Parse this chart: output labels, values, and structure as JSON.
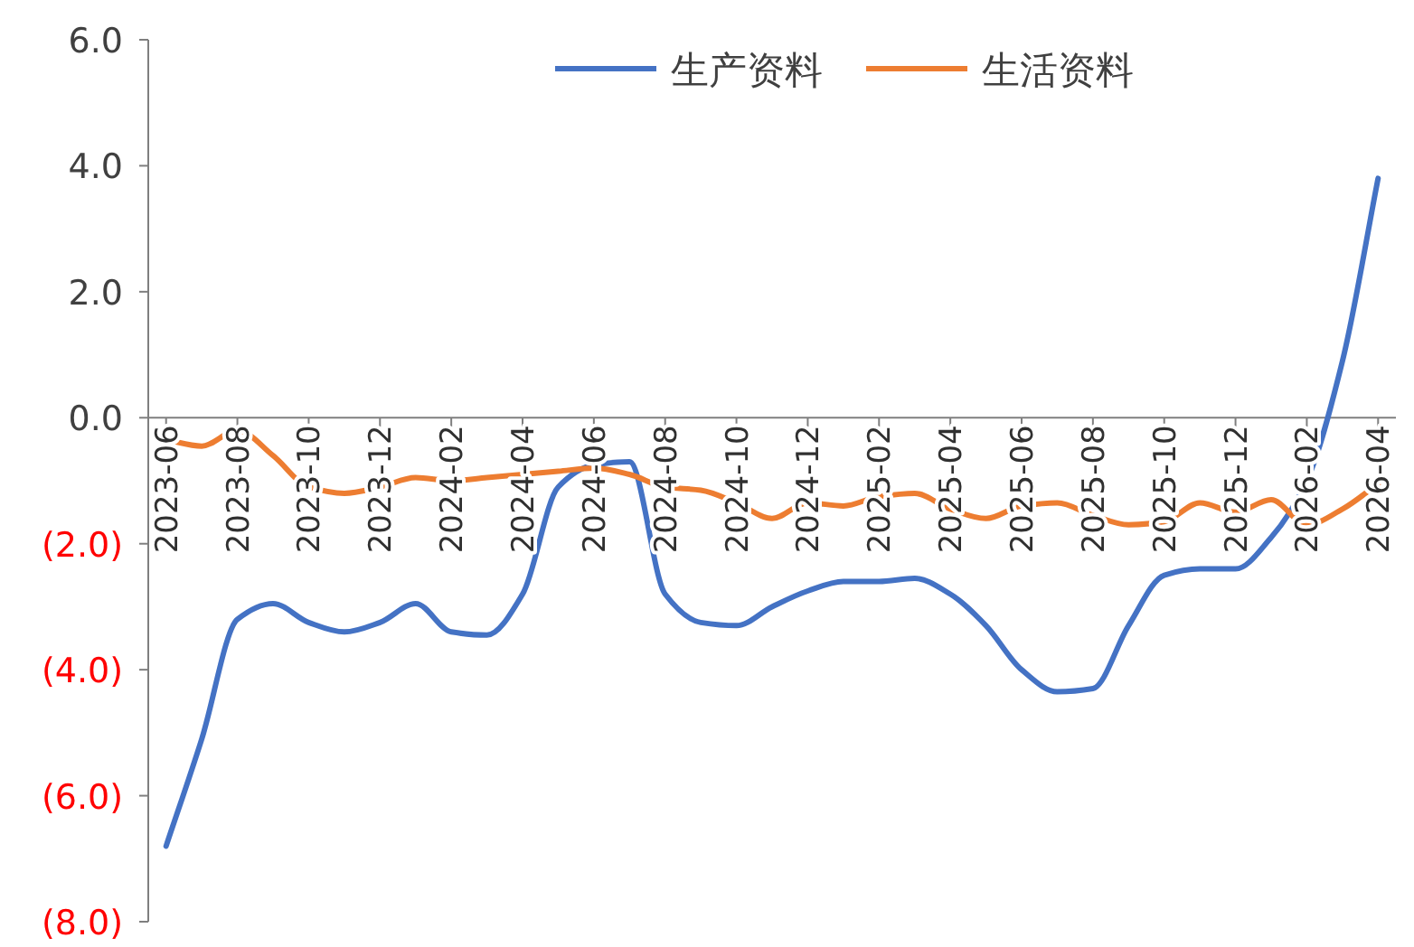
{
  "chart_data": {
    "type": "line",
    "categories": [
      "2023-06",
      null,
      "2023-08",
      null,
      "2023-10",
      null,
      "2023-12",
      null,
      "2024-02",
      null,
      "2024-04",
      null,
      "2024-06",
      null,
      "2024-08",
      null,
      "2024-10",
      null,
      "2024-12",
      null,
      "2025-02",
      null,
      "2025-04",
      null,
      "2025-06",
      null,
      "2025-08",
      null,
      "2025-10",
      null,
      "2025-12",
      null,
      "2026-02",
      null,
      "2026-04"
    ],
    "series": [
      {
        "name": "生产资料",
        "color": "#4472c4",
        "values": [
          -6.8,
          -5.1,
          -3.2,
          -2.95,
          -3.25,
          -3.4,
          -3.25,
          -2.95,
          -3.4,
          -3.45,
          -2.8,
          -1.1,
          -0.75,
          -0.7,
          -2.8,
          -3.25,
          -3.3,
          -3.0,
          -2.75,
          -2.6,
          -2.6,
          -2.55,
          -2.8,
          -3.3,
          -4.0,
          -4.35,
          -4.3,
          -3.3,
          -2.5,
          -2.4,
          -2.4,
          -1.9,
          -1.0,
          0.9,
          3.8
        ]
      },
      {
        "name": "生活资料",
        "color": "#ed7d31",
        "values": [
          -0.35,
          -0.45,
          -0.2,
          -0.6,
          -1.1,
          -1.2,
          -1.1,
          -0.95,
          -1.0,
          -0.95,
          -0.9,
          -0.85,
          -0.8,
          -0.9,
          -1.1,
          -1.15,
          -1.35,
          -1.6,
          -1.35,
          -1.4,
          -1.25,
          -1.2,
          -1.45,
          -1.6,
          -1.4,
          -1.35,
          -1.55,
          -1.7,
          -1.65,
          -1.35,
          -1.5,
          -1.3,
          -1.7,
          -1.45,
          -1.05
        ]
      }
    ],
    "ylim": [
      -8,
      6
    ],
    "yticks": [
      {
        "value": -8,
        "label": "(8.0)"
      },
      {
        "value": -6,
        "label": "(6.0)"
      },
      {
        "value": -4,
        "label": "(4.0)"
      },
      {
        "value": -2,
        "label": "(2.0)"
      },
      {
        "value": 0,
        "label": "0.0"
      },
      {
        "value": 2,
        "label": "2.0"
      },
      {
        "value": 4,
        "label": "4.0"
      },
      {
        "value": 6,
        "label": "6.0"
      }
    ],
    "legend": "top",
    "grid": false,
    "marker": "none",
    "line_style": "solid"
  }
}
